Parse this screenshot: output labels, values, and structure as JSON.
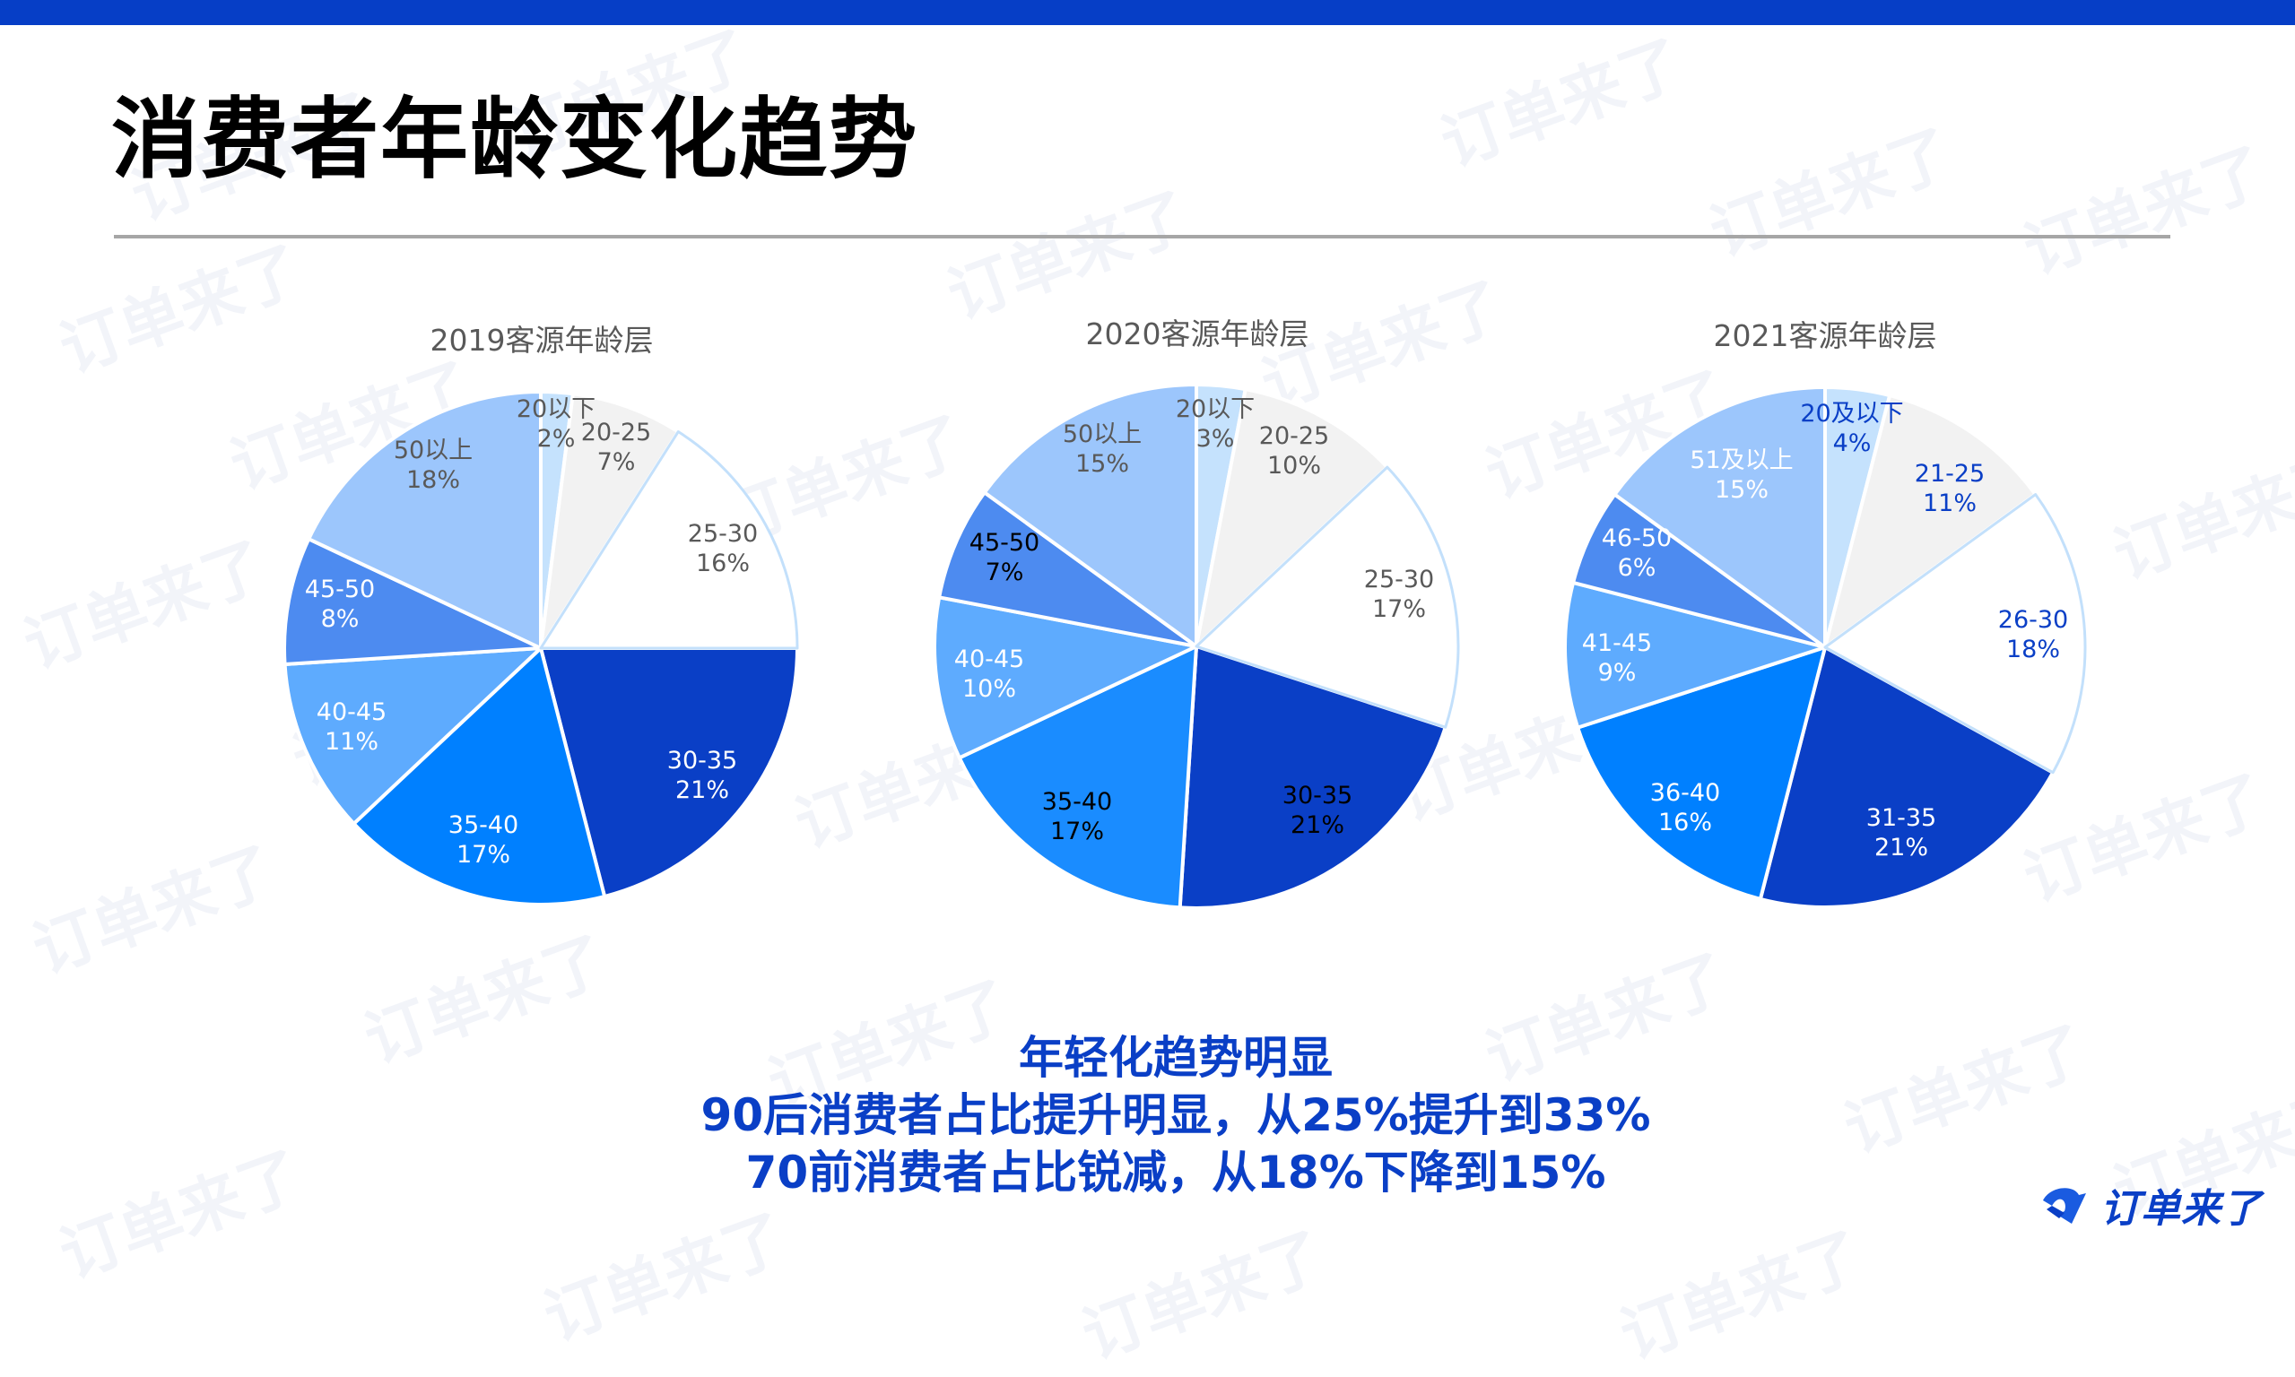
{
  "header": {
    "title": "消费者年龄变化趋势",
    "accent_color": "#063ec6"
  },
  "watermark_text": "订单来了",
  "chart_data": [
    {
      "type": "pie",
      "title": "2019客源年龄层",
      "center": [
        603,
        723
      ],
      "radius": 286,
      "title_pos": [
        604,
        377
      ],
      "start_angle_deg": 0,
      "direction": "clockwise",
      "categories": [
        "20以下",
        "20-25",
        "25-30",
        "30-35",
        "35-40",
        "40-45",
        "45-50",
        "50以上"
      ],
      "values": [
        2,
        7,
        16,
        21,
        17,
        11,
        8,
        18
      ],
      "labels": [
        "2%",
        "7%",
        "16%",
        "21%",
        "17%",
        "11%",
        "8%",
        "18%"
      ],
      "colors": [
        "#c5e2fd",
        "#f2f2f2",
        "#ffffff",
        "#0a3fc6",
        "#0080ff",
        "#5eabfe",
        "#4d8bf0",
        "#9cc6fc"
      ],
      "label_colors": [
        "#595959",
        "#595959",
        "#595959",
        "#ffffff",
        "#ffffff",
        "#ffffff",
        "#ffffff",
        "#595959"
      ],
      "label_pos": [
        [
          620,
          473
        ],
        [
          687,
          499
        ],
        [
          806,
          612
        ],
        [
          783,
          865
        ],
        [
          539,
          937
        ],
        [
          392,
          811
        ],
        [
          379,
          674
        ],
        [
          483,
          519
        ]
      ]
    },
    {
      "type": "pie",
      "title": "2020客源年龄层",
      "center": [
        1334,
        721
      ],
      "radius": 292,
      "title_pos": [
        1335,
        370
      ],
      "start_angle_deg": 0,
      "direction": "clockwise",
      "categories": [
        "20以下",
        "20-25",
        "25-30",
        "30-35",
        "35-40",
        "40-45",
        "45-50",
        "50以上"
      ],
      "values": [
        3,
        10,
        17,
        21,
        17,
        10,
        7,
        15
      ],
      "labels": [
        "3%",
        "10%",
        "17%",
        "21%",
        "17%",
        "10%",
        "7%",
        "15%"
      ],
      "colors": [
        "#c5e2fd",
        "#f2f2f2",
        "#ffffff",
        "#0a3fc6",
        "#1a8cff",
        "#5eabfe",
        "#4d8bf0",
        "#9cc6fc"
      ],
      "label_colors": [
        "#595959",
        "#595959",
        "#595959",
        "#000000",
        "#000000",
        "#ffffff",
        "#000000",
        "#595959"
      ],
      "label_pos": [
        [
          1355,
          473
        ],
        [
          1443,
          503
        ],
        [
          1560,
          663
        ],
        [
          1469,
          904
        ],
        [
          1201,
          911
        ],
        [
          1103,
          752
        ],
        [
          1120,
          622
        ],
        [
          1229,
          501
        ]
      ]
    },
    {
      "type": "pie",
      "title": "2021客源年龄层",
      "center": [
        2035,
        722
      ],
      "radius": 290,
      "title_pos": [
        2035,
        372
      ],
      "start_angle_deg": 0,
      "direction": "clockwise",
      "categories": [
        "20及以下",
        "21-25",
        "26-30",
        "31-35",
        "36-40",
        "41-45",
        "46-50",
        "51及以上"
      ],
      "values": [
        4,
        11,
        18,
        21,
        16,
        9,
        6,
        15
      ],
      "labels": [
        "4%",
        "11%",
        "18%",
        "21%",
        "16%",
        "9%",
        "6%",
        "15%"
      ],
      "colors": [
        "#c5e2fd",
        "#f2f2f2",
        "#ffffff",
        "#0a3fc6",
        "#0080ff",
        "#5eabfe",
        "#4d8bf0",
        "#9cc6fc"
      ],
      "label_colors": [
        "#0a3fc6",
        "#0a3fc6",
        "#0a3fc6",
        "#ffffff",
        "#ffffff",
        "#ffffff",
        "#ffffff",
        "#ffffff"
      ],
      "label_pos": [
        [
          2065,
          478
        ],
        [
          2174,
          545
        ],
        [
          2267,
          708
        ],
        [
          2120,
          929
        ],
        [
          1879,
          901
        ],
        [
          1803,
          734
        ],
        [
          1825,
          617
        ],
        [
          1942,
          530
        ]
      ]
    }
  ],
  "summary": {
    "lines": [
      "年轻化趋势明显",
      "90后消费者占比提升明显，从25%提升到33%",
      "70前消费者占比锐减，从18%下降到15%"
    ],
    "color": "#0a3fc6"
  },
  "logo": {
    "text": "订单来了",
    "icon": "brand-check-icon"
  }
}
